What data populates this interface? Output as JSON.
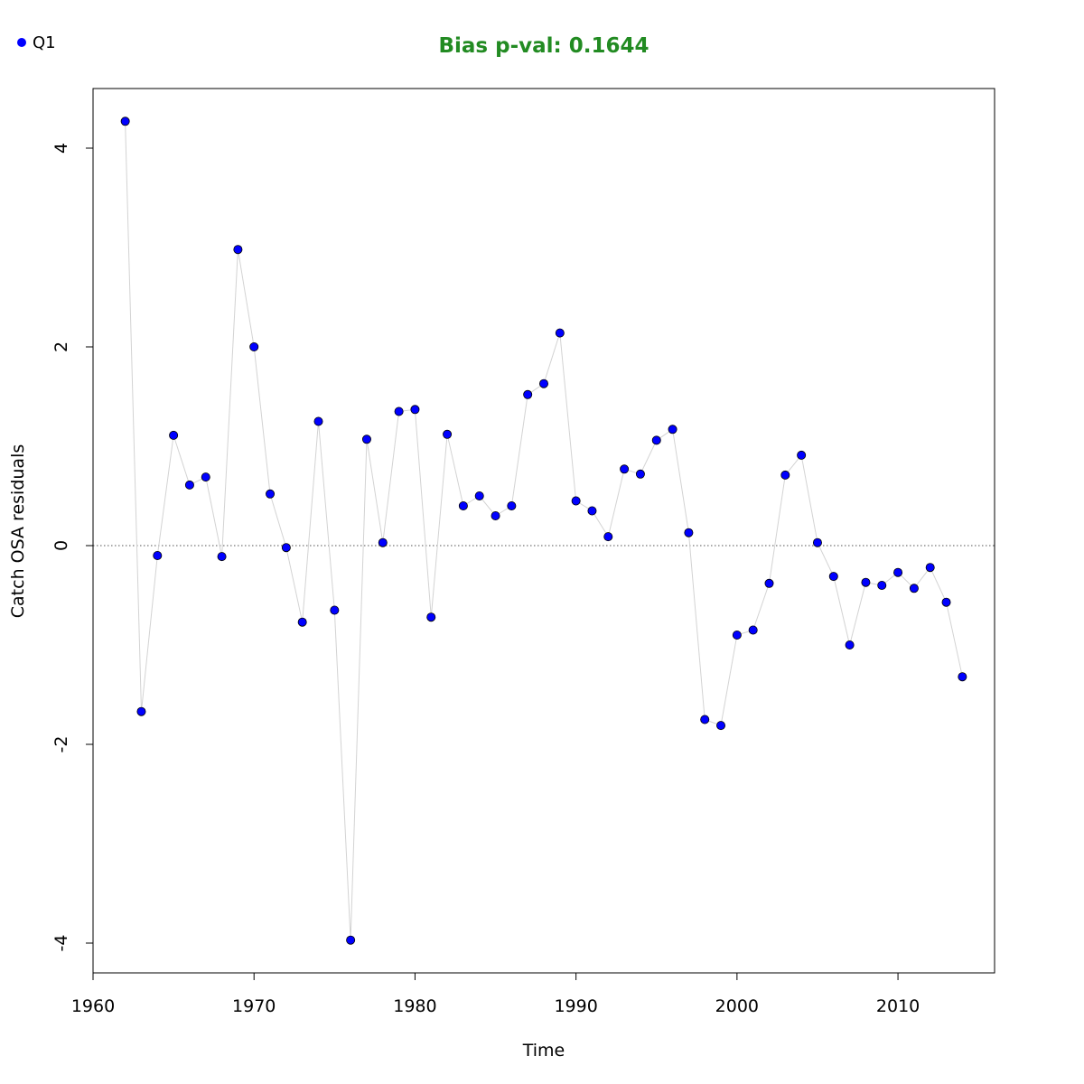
{
  "chart_data": {
    "type": "scatter",
    "title": "Bias p-val: 0.1644",
    "title_color": "#228B22",
    "xlabel": "Time",
    "ylabel": "Catch OSA residuals",
    "xlim": [
      1960,
      2016
    ],
    "ylim": [
      -4.3,
      4.6
    ],
    "xticks": [
      1960,
      1970,
      1980,
      1990,
      2000,
      2010
    ],
    "yticks": [
      -4,
      -2,
      0,
      2,
      4
    ],
    "grid": false,
    "reference_line": {
      "y": 0,
      "style": "dotted",
      "color": "#555555"
    },
    "connect_line_color": "#d3d3d3",
    "legend": {
      "position": "top-left",
      "entries": [
        {
          "label": "Q1",
          "color": "#0000ff"
        }
      ]
    },
    "series": [
      {
        "name": "Q1",
        "color": "#0000ff",
        "x": [
          1962,
          1963,
          1964,
          1965,
          1966,
          1967,
          1968,
          1969,
          1970,
          1971,
          1972,
          1973,
          1974,
          1975,
          1976,
          1977,
          1978,
          1979,
          1980,
          1981,
          1982,
          1983,
          1984,
          1985,
          1986,
          1987,
          1988,
          1989,
          1990,
          1991,
          1992,
          1993,
          1994,
          1995,
          1996,
          1997,
          1998,
          1999,
          2000,
          2001,
          2002,
          2003,
          2004,
          2005,
          2006,
          2007,
          2008,
          2009,
          2010,
          2011,
          2012,
          2013,
          2014
        ],
        "y": [
          4.27,
          -1.67,
          -0.1,
          1.11,
          0.61,
          0.69,
          -0.11,
          2.98,
          2.0,
          0.52,
          -0.02,
          -0.77,
          1.25,
          -0.65,
          -3.97,
          1.07,
          0.03,
          1.35,
          1.37,
          -0.72,
          1.12,
          0.4,
          0.5,
          0.3,
          0.4,
          1.52,
          1.63,
          2.14,
          0.45,
          0.35,
          0.09,
          0.77,
          0.72,
          1.06,
          1.17,
          0.13,
          -1.75,
          -1.81,
          -0.9,
          -0.85,
          -0.38,
          0.71,
          0.91,
          0.03,
          -0.31,
          -1.0,
          -0.37,
          -0.4,
          -0.27,
          -0.43,
          -0.22,
          -0.57,
          -1.32
        ]
      }
    ]
  }
}
